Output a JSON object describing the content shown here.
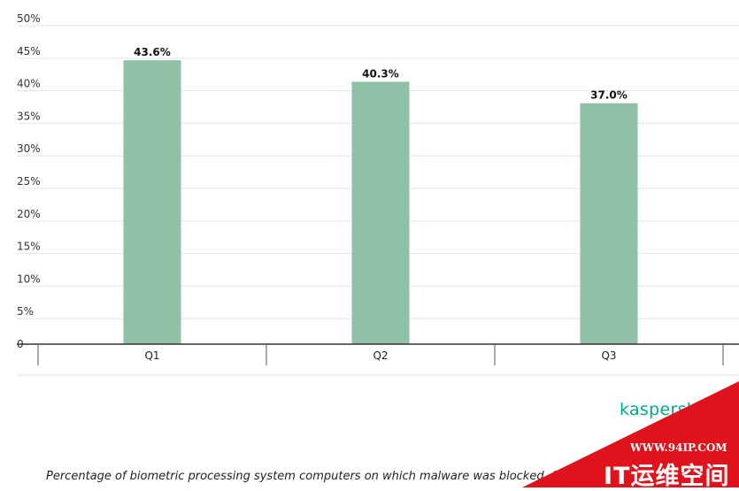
{
  "chart_data": {
    "type": "bar",
    "categories": [
      "Q1",
      "Q2",
      "Q3"
    ],
    "values": [
      43.6,
      40.3,
      37.0
    ],
    "value_labels": [
      "43.6%",
      "40.3%",
      "37.0%"
    ],
    "ylim": [
      0,
      50
    ],
    "yticks": [
      0,
      5,
      10,
      15,
      20,
      25,
      30,
      35,
      40,
      45,
      50
    ],
    "ytick_labels": [
      "0",
      "5%",
      "10%",
      "15%",
      "20%",
      "25%",
      "30%",
      "35%",
      "40%",
      "45%",
      "50%"
    ],
    "grid": true,
    "bar_color": "#8fc1a7",
    "caption": "Percentage of biometric processing system computers on which malware was blocked, Q"
  },
  "logo_text": "kaspersk",
  "watermark": {
    "url": "WWW.94IP.COM",
    "title": "IT运维空间",
    "color": "#e0121b"
  }
}
